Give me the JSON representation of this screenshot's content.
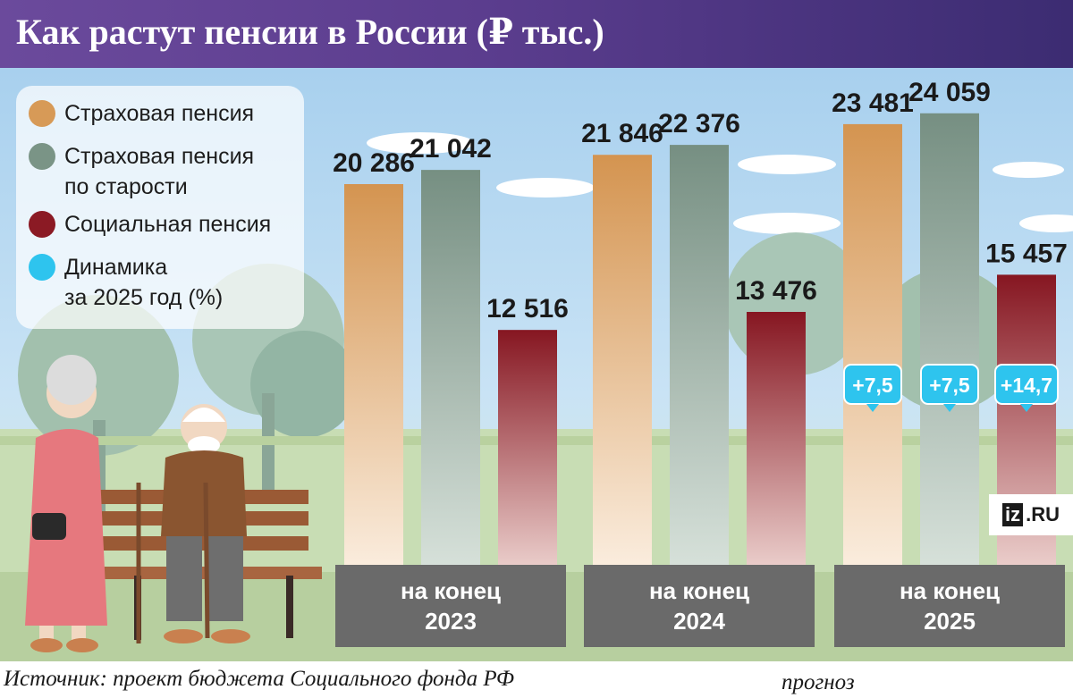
{
  "title": "Как растут пенсии в России (₽ тыс.)",
  "source": "Источник: проект бюджета Социального фонда РФ",
  "forecast_label": "прогноз",
  "logo": {
    "mark": "iz",
    "text": ".RU"
  },
  "legend": [
    {
      "label_lines": [
        "Страховая пенсия"
      ],
      "color": "#d79a57"
    },
    {
      "label_lines": [
        "Страховая пенсия",
        "по старости"
      ],
      "color": "#7a9486"
    },
    {
      "label_lines": [
        "Социальная пенсия"
      ],
      "color": "#8b1a24"
    },
    {
      "label_lines": [
        "Динамика",
        "за 2025 год (%)"
      ],
      "color": "#2ec4ee"
    }
  ],
  "chart_data": {
    "type": "bar",
    "title": "Как растут пенсии в России (₽ тыс.)",
    "categories": [
      "на конец 2023",
      "на конец 2024",
      "на конец 2025"
    ],
    "category_lines": [
      [
        "на конец",
        "2023"
      ],
      [
        "на конец",
        "2024"
      ],
      [
        "на конец",
        "2025"
      ]
    ],
    "series": [
      {
        "name": "Страховая пенсия",
        "color": "#d79a57",
        "values": [
          20286,
          21846,
          23481
        ],
        "labels": [
          "20 286",
          "21 846",
          "23 481"
        ]
      },
      {
        "name": "Страховая пенсия по старости",
        "color": "#7a9486",
        "values": [
          21042,
          22376,
          24059
        ],
        "labels": [
          "21 042",
          "22 376",
          "24 059"
        ]
      },
      {
        "name": "Социальная пенсия",
        "color": "#8b1a24",
        "values": [
          12516,
          13476,
          15457
        ],
        "labels": [
          "12 516",
          "13 476",
          "15 457"
        ]
      }
    ],
    "dynamics_2025": {
      "name": "Динамика за 2025 год (%)",
      "color": "#2ec4ee",
      "values": [
        7.5,
        7.5,
        14.7
      ],
      "labels": [
        "+7,5",
        "+7,5",
        "+14,7"
      ]
    },
    "forecast_categories": [
      "на конец 2024",
      "на конец 2025"
    ],
    "ylim": [
      0,
      26000
    ],
    "grid": false,
    "legend_position": "top-left"
  }
}
